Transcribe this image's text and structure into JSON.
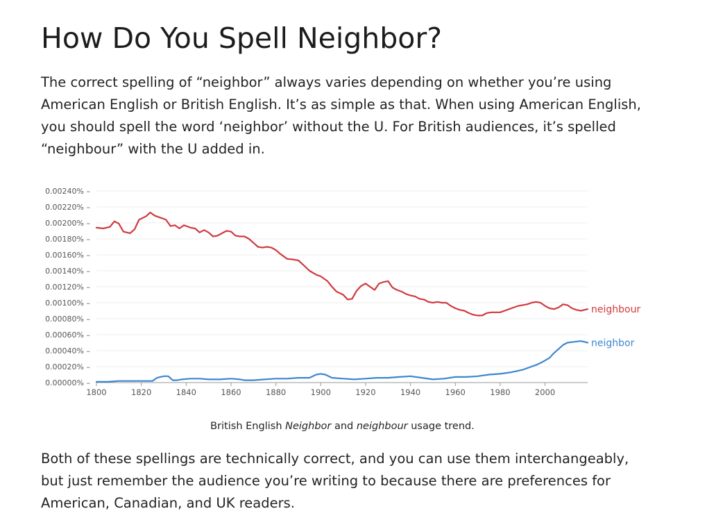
{
  "article": {
    "title": "How Do You Spell Neighbor?",
    "intro": "The correct spelling of “neighbor” always varies depending on whether you’re using American English or British English. It’s as simple as that. When using American English, you should spell the word ‘neighbor’ without the U. For British audiences, it’s spelled “neighbour” with the U added in.",
    "caption": {
      "prefix": "British English ",
      "word1": "Neighbor",
      "middle": " and ",
      "word2": "neighbour",
      "suffix": " usage trend."
    },
    "conclusion": "Both of these spellings are technically correct, and you can use them interchangeably, but just remember the audience you’re writing to because there are preferences for American, Canadian, and UK readers."
  },
  "chart_data": {
    "type": "line",
    "title": "",
    "xlabel": "",
    "ylabel": "",
    "xlim": [
      1800,
      2019
    ],
    "ylim": [
      0,
      0.0024
    ],
    "grid": true,
    "legend": "inline labels at right end of each line",
    "x_ticks": [
      "1800",
      "1820",
      "1840",
      "1860",
      "1880",
      "1900",
      "1920",
      "1940",
      "1960",
      "1980",
      "2000"
    ],
    "y_ticks": [
      "0.00000%",
      "0.00020%",
      "0.00040%",
      "0.00060%",
      "0.00080%",
      "0.00100%",
      "0.00120%",
      "0.00140%",
      "0.00160%",
      "0.00180%",
      "0.00200%",
      "0.00220%",
      "0.00240%"
    ],
    "series": [
      {
        "name": "neighbour",
        "color": "#d0393e",
        "points": [
          [
            1800,
            0.00194
          ],
          [
            1803,
            0.00193
          ],
          [
            1806,
            0.00195
          ],
          [
            1808,
            0.00202
          ],
          [
            1810,
            0.00199
          ],
          [
            1812,
            0.00189
          ],
          [
            1815,
            0.00187
          ],
          [
            1817,
            0.00192
          ],
          [
            1819,
            0.00204
          ],
          [
            1822,
            0.00208
          ],
          [
            1824,
            0.00213
          ],
          [
            1826,
            0.00209
          ],
          [
            1829,
            0.00206
          ],
          [
            1831,
            0.00204
          ],
          [
            1833,
            0.00196
          ],
          [
            1835,
            0.00197
          ],
          [
            1837,
            0.00193
          ],
          [
            1839,
            0.00197
          ],
          [
            1842,
            0.00194
          ],
          [
            1844,
            0.00193
          ],
          [
            1846,
            0.00188
          ],
          [
            1848,
            0.00191
          ],
          [
            1850,
            0.00188
          ],
          [
            1852,
            0.00183
          ],
          [
            1854,
            0.00184
          ],
          [
            1856,
            0.00187
          ],
          [
            1858,
            0.0019
          ],
          [
            1860,
            0.00189
          ],
          [
            1862,
            0.00184
          ],
          [
            1864,
            0.00183
          ],
          [
            1866,
            0.00183
          ],
          [
            1868,
            0.0018
          ],
          [
            1870,
            0.00175
          ],
          [
            1872,
            0.0017
          ],
          [
            1874,
            0.00169
          ],
          [
            1876,
            0.0017
          ],
          [
            1878,
            0.00169
          ],
          [
            1880,
            0.00166
          ],
          [
            1882,
            0.00161
          ],
          [
            1885,
            0.00155
          ],
          [
            1888,
            0.00154
          ],
          [
            1890,
            0.00153
          ],
          [
            1892,
            0.00148
          ],
          [
            1895,
            0.0014
          ],
          [
            1898,
            0.00135
          ],
          [
            1900,
            0.00133
          ],
          [
            1903,
            0.00127
          ],
          [
            1905,
            0.0012
          ],
          [
            1907,
            0.00114
          ],
          [
            1910,
            0.0011
          ],
          [
            1912,
            0.00104
          ],
          [
            1914,
            0.00105
          ],
          [
            1916,
            0.00115
          ],
          [
            1918,
            0.00121
          ],
          [
            1920,
            0.00124
          ],
          [
            1922,
            0.0012
          ],
          [
            1924,
            0.00116
          ],
          [
            1926,
            0.00124
          ],
          [
            1928,
            0.00126
          ],
          [
            1930,
            0.00127
          ],
          [
            1932,
            0.00119
          ],
          [
            1934,
            0.00116
          ],
          [
            1936,
            0.00114
          ],
          [
            1938,
            0.00111
          ],
          [
            1940,
            0.00109
          ],
          [
            1942,
            0.00108
          ],
          [
            1944,
            0.00105
          ],
          [
            1946,
            0.00104
          ],
          [
            1948,
            0.00101
          ],
          [
            1950,
            0.001
          ],
          [
            1952,
            0.00101
          ],
          [
            1954,
            0.001
          ],
          [
            1956,
            0.001
          ],
          [
            1958,
            0.00096
          ],
          [
            1960,
            0.00093
          ],
          [
            1962,
            0.00091
          ],
          [
            1964,
            0.0009
          ],
          [
            1966,
            0.00087
          ],
          [
            1968,
            0.00085
          ],
          [
            1970,
            0.00084
          ],
          [
            1972,
            0.00084
          ],
          [
            1974,
            0.00087
          ],
          [
            1976,
            0.00088
          ],
          [
            1978,
            0.00088
          ],
          [
            1980,
            0.00088
          ],
          [
            1982,
            0.0009
          ],
          [
            1984,
            0.00092
          ],
          [
            1986,
            0.00094
          ],
          [
            1988,
            0.00096
          ],
          [
            1990,
            0.00097
          ],
          [
            1992,
            0.00098
          ],
          [
            1994,
            0.001
          ],
          [
            1996,
            0.00101
          ],
          [
            1998,
            0.001
          ],
          [
            2000,
            0.00096
          ],
          [
            2002,
            0.00093
          ],
          [
            2004,
            0.00092
          ],
          [
            2006,
            0.00094
          ],
          [
            2008,
            0.00098
          ],
          [
            2010,
            0.00097
          ],
          [
            2012,
            0.00093
          ],
          [
            2014,
            0.00091
          ],
          [
            2016,
            0.0009
          ],
          [
            2019,
            0.00092
          ]
        ]
      },
      {
        "name": "neighbor",
        "color": "#3b86cf",
        "points": [
          [
            1800,
            1e-05
          ],
          [
            1805,
            1e-05
          ],
          [
            1810,
            2e-05
          ],
          [
            1815,
            2e-05
          ],
          [
            1820,
            2e-05
          ],
          [
            1825,
            2e-05
          ],
          [
            1827,
            6e-05
          ],
          [
            1830,
            8e-05
          ],
          [
            1832,
            8e-05
          ],
          [
            1834,
            3e-05
          ],
          [
            1836,
            3e-05
          ],
          [
            1838,
            4e-05
          ],
          [
            1842,
            5e-05
          ],
          [
            1846,
            5e-05
          ],
          [
            1850,
            4e-05
          ],
          [
            1855,
            4e-05
          ],
          [
            1860,
            5e-05
          ],
          [
            1864,
            4e-05
          ],
          [
            1866,
            3e-05
          ],
          [
            1870,
            3e-05
          ],
          [
            1875,
            4e-05
          ],
          [
            1880,
            5e-05
          ],
          [
            1885,
            5e-05
          ],
          [
            1890,
            6e-05
          ],
          [
            1895,
            6e-05
          ],
          [
            1898,
            0.0001
          ],
          [
            1900,
            0.00011
          ],
          [
            1902,
            0.0001
          ],
          [
            1905,
            6e-05
          ],
          [
            1910,
            5e-05
          ],
          [
            1915,
            4e-05
          ],
          [
            1920,
            5e-05
          ],
          [
            1925,
            6e-05
          ],
          [
            1930,
            6e-05
          ],
          [
            1935,
            7e-05
          ],
          [
            1940,
            8e-05
          ],
          [
            1945,
            6e-05
          ],
          [
            1950,
            4e-05
          ],
          [
            1955,
            5e-05
          ],
          [
            1960,
            7e-05
          ],
          [
            1965,
            7e-05
          ],
          [
            1970,
            8e-05
          ],
          [
            1975,
            0.0001
          ],
          [
            1980,
            0.00011
          ],
          [
            1985,
            0.00013
          ],
          [
            1990,
            0.00016
          ],
          [
            1993,
            0.00019
          ],
          [
            1996,
            0.00022
          ],
          [
            1999,
            0.00026
          ],
          [
            2002,
            0.00031
          ],
          [
            2004,
            0.00037
          ],
          [
            2006,
            0.00042
          ],
          [
            2008,
            0.00047
          ],
          [
            2010,
            0.0005
          ],
          [
            2013,
            0.00051
          ],
          [
            2016,
            0.00052
          ],
          [
            2019,
            0.0005
          ]
        ]
      }
    ]
  }
}
